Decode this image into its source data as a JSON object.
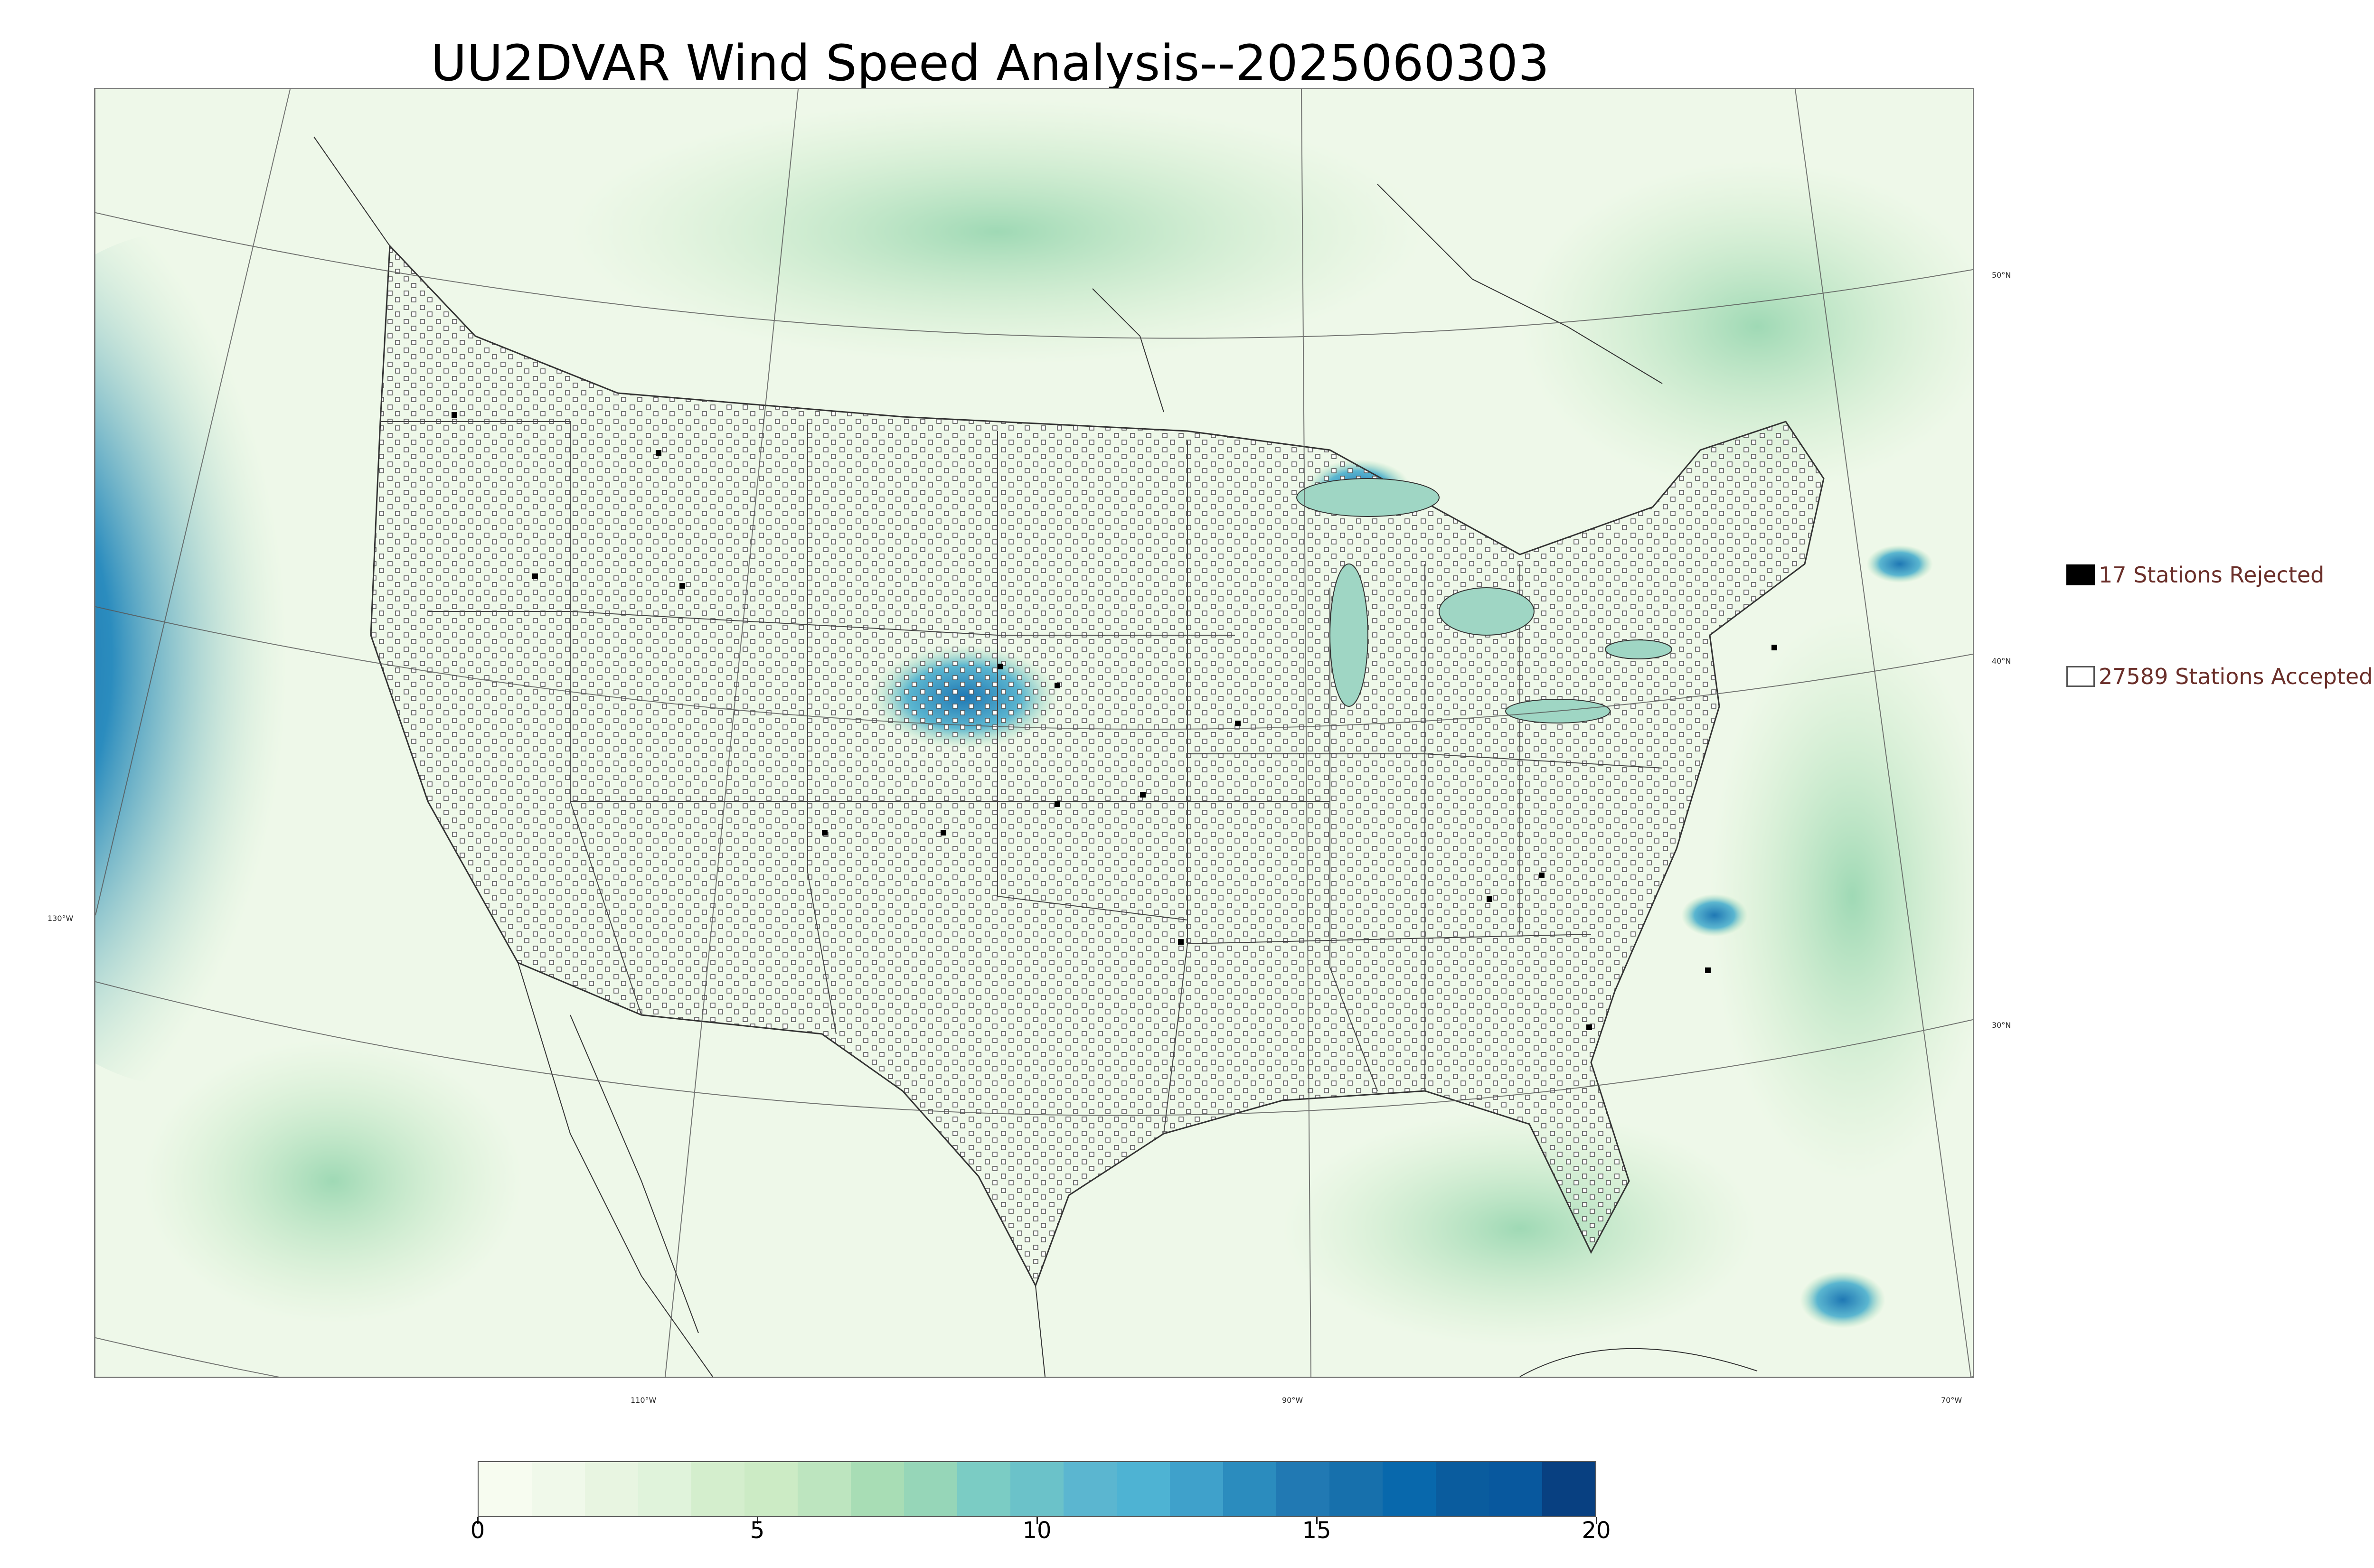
{
  "title": "UU2DVAR Wind Speed Analysis--2025060303",
  "legend": {
    "rejected": {
      "label": "17 Stations Rejected",
      "color": "#000000"
    },
    "accepted": {
      "label": "27589 Stations Accepted",
      "color": "#ffffff"
    }
  },
  "graticule_labels": {
    "lat_50": "50°N",
    "lat_40": "40°N",
    "lat_30": "30°N",
    "lon_130": "130°W",
    "lon_110": "110°W",
    "lon_90": "90°W",
    "lon_70": "70°W"
  },
  "colorbar": {
    "ticks": [
      "0",
      "5",
      "10",
      "15",
      "20"
    ],
    "range": [
      0,
      20
    ],
    "colors": [
      "#f7fcf0",
      "#f0f9ea",
      "#e8f5e1",
      "#e0f3db",
      "#d4eecd",
      "#ccebc5",
      "#bde5bf",
      "#a8ddb5",
      "#96d6b8",
      "#7bccc4",
      "#6bc2c9",
      "#5bb6d0",
      "#4eb3d3",
      "#3fa1cb",
      "#2b8cbe",
      "#2179b3",
      "#1770ac",
      "#0868ac",
      "#0a5c9e",
      "#08589e",
      "#084081"
    ]
  },
  "colors": {
    "ocean_strong": "#1f6fb2",
    "land_base": "#eef8e9",
    "station_edge": "#555555"
  }
}
